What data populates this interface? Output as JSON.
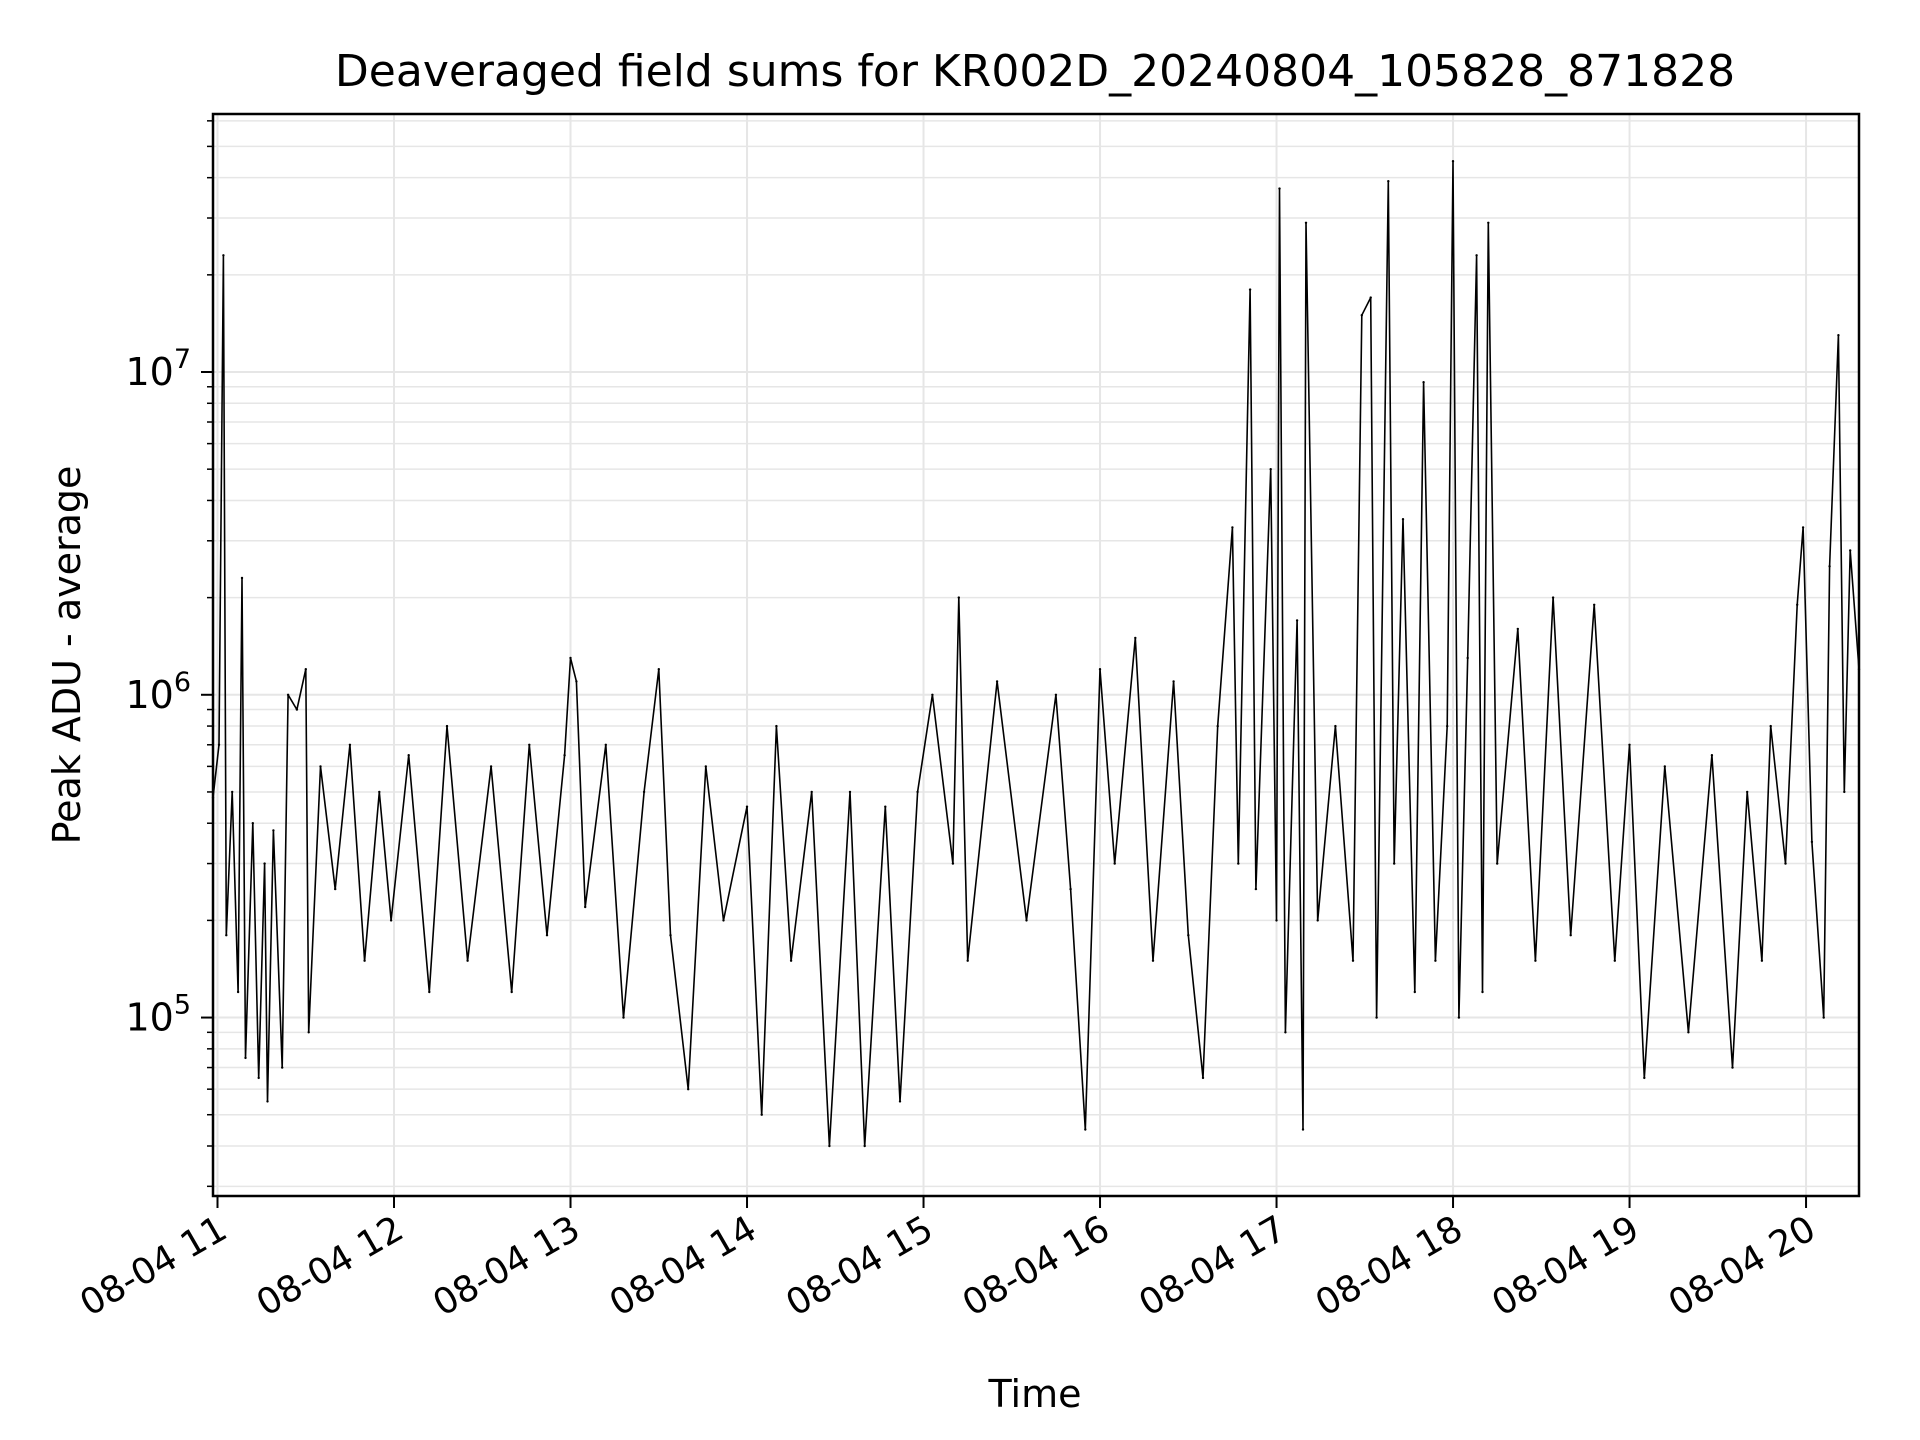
{
  "chart_data": {
    "type": "line",
    "title": "Deaveraged field sums for KR002D_20240804_105828_871828",
    "xlabel": "Time",
    "ylabel": "Peak ADU - average",
    "x_axis": {
      "kind": "datetime",
      "range": [
        "2024-08-04T10:58:28",
        "2024-08-04T20:18:00"
      ],
      "ticks": [
        {
          "value": "2024-08-04T11:00:00",
          "label": "08-04 11"
        },
        {
          "value": "2024-08-04T12:00:00",
          "label": "08-04 12"
        },
        {
          "value": "2024-08-04T13:00:00",
          "label": "08-04 13"
        },
        {
          "value": "2024-08-04T14:00:00",
          "label": "08-04 14"
        },
        {
          "value": "2024-08-04T15:00:00",
          "label": "08-04 15"
        },
        {
          "value": "2024-08-04T16:00:00",
          "label": "08-04 16"
        },
        {
          "value": "2024-08-04T17:00:00",
          "label": "08-04 17"
        },
        {
          "value": "2024-08-04T18:00:00",
          "label": "08-04 18"
        },
        {
          "value": "2024-08-04T19:00:00",
          "label": "08-04 19"
        },
        {
          "value": "2024-08-04T20:00:00",
          "label": "08-04 20"
        }
      ]
    },
    "y_axis": {
      "scale": "log",
      "range": [
        28000,
        63000000
      ],
      "major_ticks": [
        {
          "value": 100000,
          "mantissa": "10",
          "exponent": "5"
        },
        {
          "value": 1000000,
          "mantissa": "10",
          "exponent": "6"
        },
        {
          "value": 10000000,
          "mantissa": "10",
          "exponent": "7"
        }
      ]
    },
    "grid": true,
    "line_color": "#000000",
    "grid_color": "#e6e6e6",
    "series": [
      {
        "points": [
          [
            "2024-08-04T10:58:28",
            480000
          ],
          [
            "2024-08-04T11:00:30",
            700000
          ],
          [
            "2024-08-04T11:02:00",
            23000000
          ],
          [
            "2024-08-04T11:03:00",
            180000
          ],
          [
            "2024-08-04T11:05:00",
            500000
          ],
          [
            "2024-08-04T11:07:00",
            120000
          ],
          [
            "2024-08-04T11:08:20",
            2300000
          ],
          [
            "2024-08-04T11:09:30",
            75000
          ],
          [
            "2024-08-04T11:12:00",
            400000
          ],
          [
            "2024-08-04T11:14:00",
            65000
          ],
          [
            "2024-08-04T11:16:00",
            300000
          ],
          [
            "2024-08-04T11:17:00",
            55000
          ],
          [
            "2024-08-04T11:19:00",
            380000
          ],
          [
            "2024-08-04T11:22:00",
            70000
          ],
          [
            "2024-08-04T11:24:00",
            1000000
          ],
          [
            "2024-08-04T11:27:00",
            900000
          ],
          [
            "2024-08-04T11:30:00",
            1200000
          ],
          [
            "2024-08-04T11:31:00",
            90000
          ],
          [
            "2024-08-04T11:35:00",
            600000
          ],
          [
            "2024-08-04T11:40:00",
            250000
          ],
          [
            "2024-08-04T11:45:00",
            700000
          ],
          [
            "2024-08-04T11:50:00",
            150000
          ],
          [
            "2024-08-04T11:55:00",
            500000
          ],
          [
            "2024-08-04T11:59:00",
            200000
          ],
          [
            "2024-08-04T12:05:00",
            650000
          ],
          [
            "2024-08-04T12:12:00",
            120000
          ],
          [
            "2024-08-04T12:18:00",
            800000
          ],
          [
            "2024-08-04T12:25:00",
            150000
          ],
          [
            "2024-08-04T12:33:00",
            600000
          ],
          [
            "2024-08-04T12:40:00",
            120000
          ],
          [
            "2024-08-04T12:46:00",
            700000
          ],
          [
            "2024-08-04T12:52:00",
            180000
          ],
          [
            "2024-08-04T12:58:00",
            650000
          ],
          [
            "2024-08-04T13:00:00",
            1300000
          ],
          [
            "2024-08-04T13:02:00",
            1100000
          ],
          [
            "2024-08-04T13:05:00",
            220000
          ],
          [
            "2024-08-04T13:12:00",
            700000
          ],
          [
            "2024-08-04T13:18:00",
            100000
          ],
          [
            "2024-08-04T13:25:00",
            500000
          ],
          [
            "2024-08-04T13:30:00",
            1200000
          ],
          [
            "2024-08-04T13:34:00",
            180000
          ],
          [
            "2024-08-04T13:40:00",
            60000
          ],
          [
            "2024-08-04T13:46:00",
            600000
          ],
          [
            "2024-08-04T13:52:00",
            200000
          ],
          [
            "2024-08-04T14:00:00",
            450000
          ],
          [
            "2024-08-04T14:05:00",
            50000
          ],
          [
            "2024-08-04T14:10:00",
            800000
          ],
          [
            "2024-08-04T14:15:00",
            150000
          ],
          [
            "2024-08-04T14:22:00",
            500000
          ],
          [
            "2024-08-04T14:28:00",
            40000
          ],
          [
            "2024-08-04T14:35:00",
            500000
          ],
          [
            "2024-08-04T14:40:00",
            40000
          ],
          [
            "2024-08-04T14:47:00",
            450000
          ],
          [
            "2024-08-04T14:52:00",
            55000
          ],
          [
            "2024-08-04T14:58:00",
            500000
          ],
          [
            "2024-08-04T15:03:00",
            1000000
          ],
          [
            "2024-08-04T15:10:00",
            300000
          ],
          [
            "2024-08-04T15:12:00",
            2000000
          ],
          [
            "2024-08-04T15:15:00",
            150000
          ],
          [
            "2024-08-04T15:25:00",
            1100000
          ],
          [
            "2024-08-04T15:35:00",
            200000
          ],
          [
            "2024-08-04T15:45:00",
            1000000
          ],
          [
            "2024-08-04T15:50:00",
            250000
          ],
          [
            "2024-08-04T15:55:00",
            45000
          ],
          [
            "2024-08-04T16:00:00",
            1200000
          ],
          [
            "2024-08-04T16:05:00",
            300000
          ],
          [
            "2024-08-04T16:12:00",
            1500000
          ],
          [
            "2024-08-04T16:18:00",
            150000
          ],
          [
            "2024-08-04T16:25:00",
            1100000
          ],
          [
            "2024-08-04T16:30:00",
            180000
          ],
          [
            "2024-08-04T16:35:00",
            65000
          ],
          [
            "2024-08-04T16:40:00",
            800000
          ],
          [
            "2024-08-04T16:45:00",
            3300000
          ],
          [
            "2024-08-04T16:47:00",
            300000
          ],
          [
            "2024-08-04T16:51:00",
            18000000
          ],
          [
            "2024-08-04T16:53:00",
            250000
          ],
          [
            "2024-08-04T16:58:00",
            5000000
          ],
          [
            "2024-08-04T17:00:00",
            200000
          ],
          [
            "2024-08-04T17:01:00",
            37000000
          ],
          [
            "2024-08-04T17:03:00",
            90000
          ],
          [
            "2024-08-04T17:07:00",
            1700000
          ],
          [
            "2024-08-04T17:09:00",
            45000
          ],
          [
            "2024-08-04T17:10:00",
            29000000
          ],
          [
            "2024-08-04T17:14:00",
            200000
          ],
          [
            "2024-08-04T17:20:00",
            800000
          ],
          [
            "2024-08-04T17:26:00",
            150000
          ],
          [
            "2024-08-04T17:29:00",
            15000000
          ],
          [
            "2024-08-04T17:32:00",
            17000000
          ],
          [
            "2024-08-04T17:34:00",
            100000
          ],
          [
            "2024-08-04T17:38:00",
            39000000
          ],
          [
            "2024-08-04T17:40:00",
            300000
          ],
          [
            "2024-08-04T17:43:00",
            3500000
          ],
          [
            "2024-08-04T17:47:00",
            120000
          ],
          [
            "2024-08-04T17:50:00",
            9300000
          ],
          [
            "2024-08-04T17:54:00",
            150000
          ],
          [
            "2024-08-04T17:58:00",
            800000
          ],
          [
            "2024-08-04T18:00:00",
            45000000
          ],
          [
            "2024-08-04T18:02:00",
            100000
          ],
          [
            "2024-08-04T18:05:00",
            1300000
          ],
          [
            "2024-08-04T18:08:00",
            23000000
          ],
          [
            "2024-08-04T18:10:00",
            120000
          ],
          [
            "2024-08-04T18:12:00",
            29000000
          ],
          [
            "2024-08-04T18:15:00",
            300000
          ],
          [
            "2024-08-04T18:22:00",
            1600000
          ],
          [
            "2024-08-04T18:28:00",
            150000
          ],
          [
            "2024-08-04T18:34:00",
            2000000
          ],
          [
            "2024-08-04T18:40:00",
            180000
          ],
          [
            "2024-08-04T18:48:00",
            1900000
          ],
          [
            "2024-08-04T18:55:00",
            150000
          ],
          [
            "2024-08-04T19:00:00",
            700000
          ],
          [
            "2024-08-04T19:05:00",
            65000
          ],
          [
            "2024-08-04T19:12:00",
            600000
          ],
          [
            "2024-08-04T19:20:00",
            90000
          ],
          [
            "2024-08-04T19:28:00",
            650000
          ],
          [
            "2024-08-04T19:35:00",
            70000
          ],
          [
            "2024-08-04T19:40:00",
            500000
          ],
          [
            "2024-08-04T19:45:00",
            150000
          ],
          [
            "2024-08-04T19:48:00",
            800000
          ],
          [
            "2024-08-04T19:53:00",
            300000
          ],
          [
            "2024-08-04T19:57:00",
            1900000
          ],
          [
            "2024-08-04T19:59:00",
            3300000
          ],
          [
            "2024-08-04T20:02:00",
            350000
          ],
          [
            "2024-08-04T20:06:00",
            100000
          ],
          [
            "2024-08-04T20:08:00",
            2500000
          ],
          [
            "2024-08-04T20:11:00",
            13000000
          ],
          [
            "2024-08-04T20:13:00",
            500000
          ],
          [
            "2024-08-04T20:15:00",
            2800000
          ],
          [
            "2024-08-04T20:18:00",
            1200000
          ]
        ]
      }
    ]
  }
}
